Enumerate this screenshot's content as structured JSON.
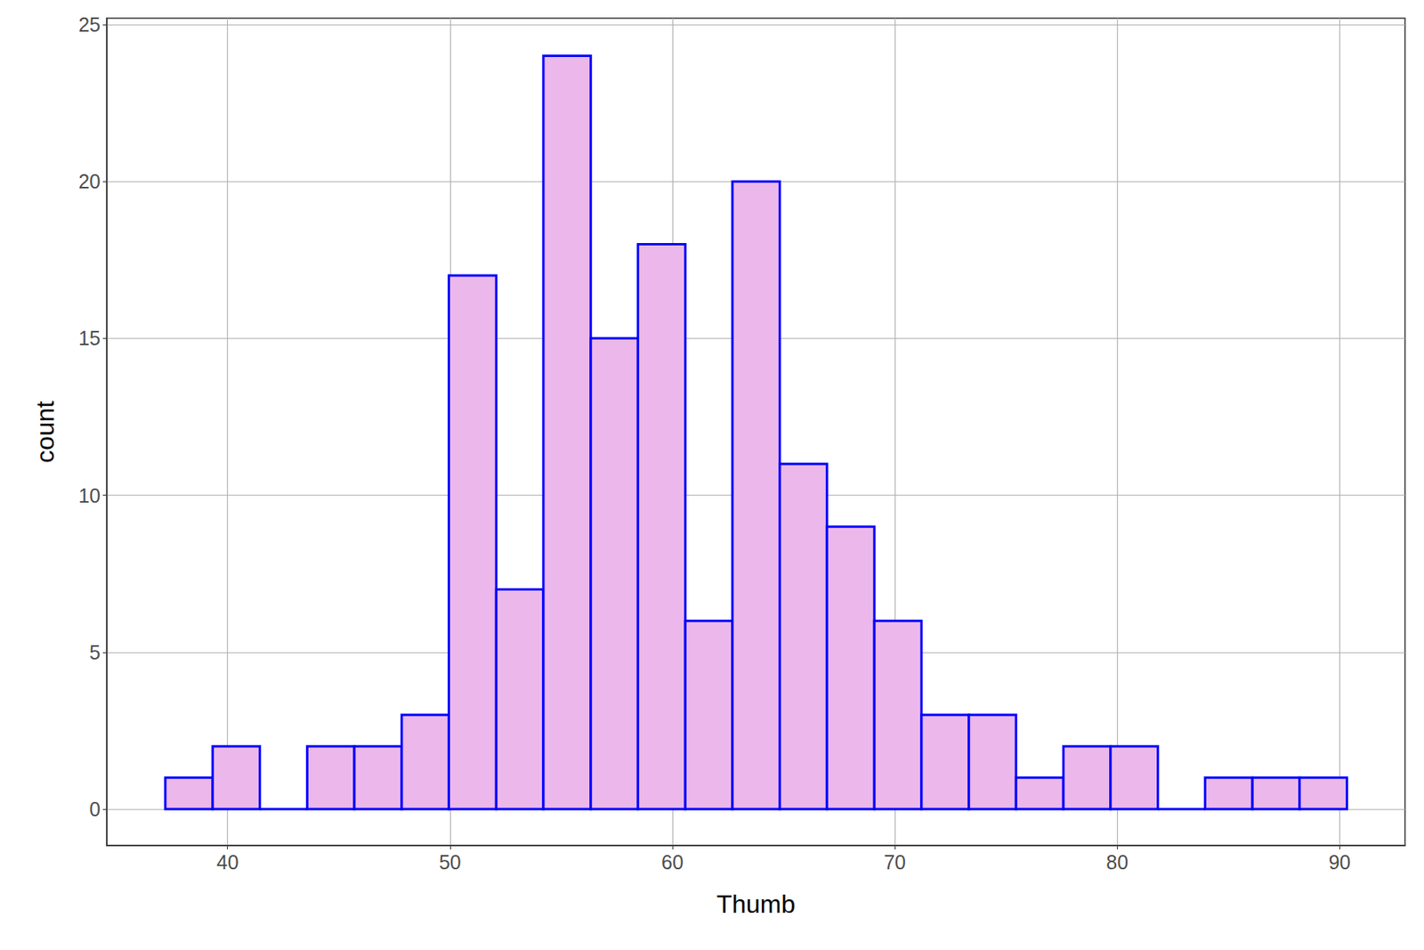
{
  "chart_data": {
    "type": "histogram",
    "x_label": "Thumb",
    "y_label": "count",
    "bins": [
      37.2,
      39.33,
      41.45,
      43.58,
      45.7,
      47.83,
      49.95,
      52.08,
      54.2,
      56.33,
      58.45,
      60.58,
      62.7,
      64.83,
      66.95,
      69.08,
      71.2,
      73.33,
      75.45,
      77.58,
      79.7,
      81.83,
      83.95,
      86.08,
      88.2,
      90.33
    ],
    "values": [
      1,
      2,
      0,
      2,
      2,
      3,
      17,
      7,
      24,
      15,
      18,
      6,
      20,
      11,
      9,
      6,
      3,
      3,
      1,
      2,
      2,
      0,
      1,
      1,
      1
    ],
    "color": "#ecb8ec",
    "xlim": [
      34.57,
      92.94
    ],
    "xticks": [
      40,
      50,
      60,
      70,
      80,
      90
    ],
    "ylim": [
      -1.16,
      25.2
    ],
    "yticks": [
      0,
      5,
      10,
      15,
      20,
      25
    ],
    "grid": true
  }
}
